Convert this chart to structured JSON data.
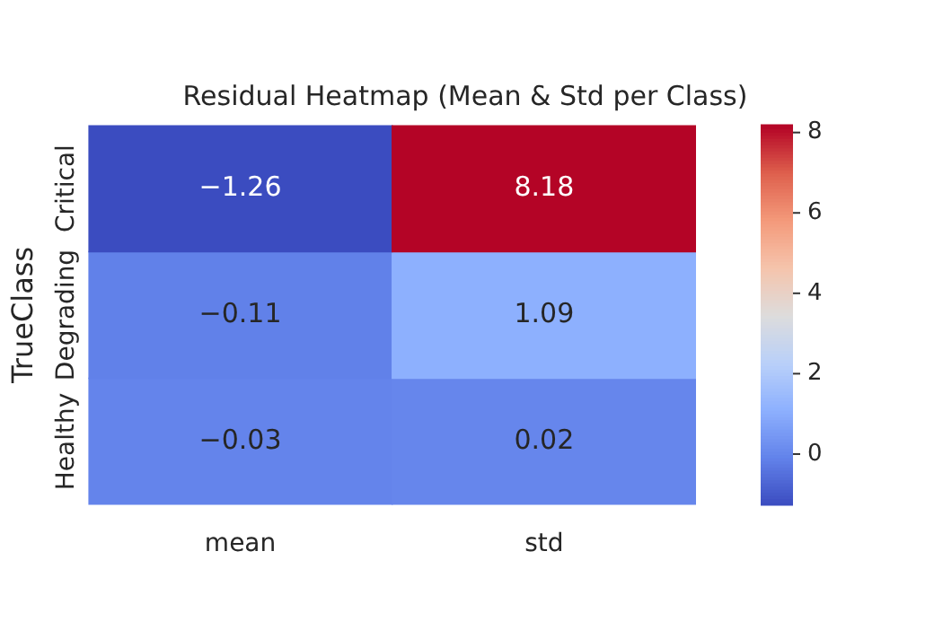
{
  "chart_data": {
    "type": "heatmap",
    "title": "Residual Heatmap (Mean & Std per Class)",
    "ylabel": "TrueClass",
    "categories": [
      "mean",
      "std"
    ],
    "y_categories": [
      "Critical",
      "Degrading",
      "Healthy"
    ],
    "cells": [
      [
        -1.26,
        8.18
      ],
      [
        -0.11,
        1.09
      ],
      [
        -0.03,
        0.02
      ]
    ],
    "cell_labels": [
      [
        "−1.26",
        "8.18"
      ],
      [
        "−0.11",
        "1.09"
      ],
      [
        "−0.03",
        "0.02"
      ]
    ],
    "clim": [
      -1.26,
      8.18
    ],
    "cticks": [
      0,
      2,
      4,
      6,
      8
    ],
    "grid": false
  }
}
